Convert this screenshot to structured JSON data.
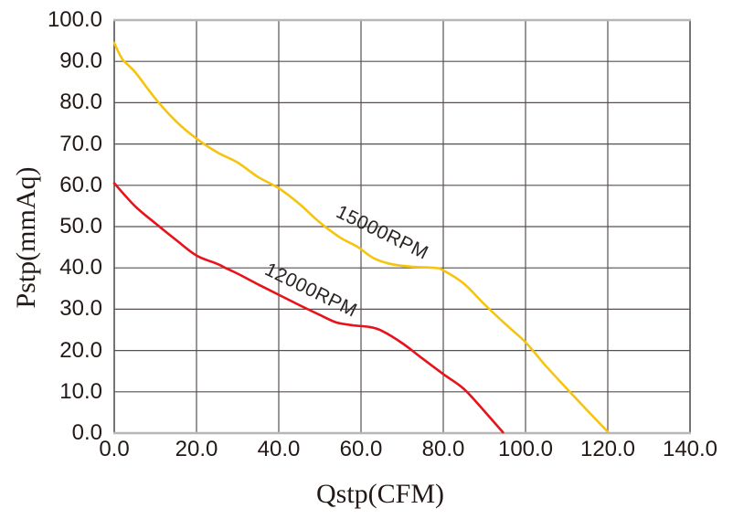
{
  "chart_data": {
    "type": "line",
    "title": "",
    "xlabel": "Qstp(CFM)",
    "ylabel": "Pstp(mmAq)",
    "xlim": [
      0,
      140
    ],
    "ylim": [
      0,
      100
    ],
    "grid": true,
    "legend_position": "inline-curve-labels",
    "x_ticks": {
      "values": [
        0,
        20,
        40,
        60,
        80,
        100,
        120,
        140
      ],
      "labels": [
        "0.0",
        "20.0",
        "40.0",
        "60.0",
        "80.0",
        "100.0",
        "120.0",
        "140.0"
      ]
    },
    "y_ticks": {
      "values": [
        0,
        10,
        20,
        30,
        40,
        50,
        60,
        70,
        80,
        90,
        100
      ],
      "labels": [
        "0.0",
        "10.0",
        "20.0",
        "30.0",
        "40.0",
        "50.0",
        "60.0",
        "70.0",
        "80.0",
        "90.0",
        "100.0"
      ]
    },
    "series": [
      {
        "name": "15000RPM",
        "color": "#f6c40e",
        "label_anchor": {
          "x": 65,
          "y": 48.5,
          "angle": 26
        },
        "points": [
          [
            0,
            94.5
          ],
          [
            2,
            90.5
          ],
          [
            5,
            87.5
          ],
          [
            10,
            81
          ],
          [
            15,
            75.5
          ],
          [
            20,
            71.3
          ],
          [
            25,
            68
          ],
          [
            30,
            65.5
          ],
          [
            35,
            62
          ],
          [
            40,
            59.3
          ],
          [
            45,
            55.5
          ],
          [
            50,
            51
          ],
          [
            55,
            47.3
          ],
          [
            59,
            45.2
          ],
          [
            63,
            42.4
          ],
          [
            67,
            41
          ],
          [
            72,
            40.3
          ],
          [
            78,
            40
          ],
          [
            80,
            39.4
          ],
          [
            85,
            36.2
          ],
          [
            90,
            31.2
          ],
          [
            95,
            26.5
          ],
          [
            100,
            22
          ],
          [
            105,
            16.2
          ],
          [
            110,
            10.8
          ],
          [
            115,
            5.5
          ],
          [
            120,
            0.3
          ]
        ]
      },
      {
        "name": "12000RPM",
        "color": "#e8111c",
        "label_anchor": {
          "x": 47.8,
          "y": 34.5,
          "angle": 26
        },
        "points": [
          [
            0,
            60.5
          ],
          [
            5,
            55
          ],
          [
            10,
            50.8
          ],
          [
            15,
            46.8
          ],
          [
            20,
            43
          ],
          [
            25,
            41
          ],
          [
            27,
            40
          ],
          [
            30,
            38.6
          ],
          [
            35,
            36
          ],
          [
            40,
            33.5
          ],
          [
            45,
            31
          ],
          [
            50,
            28.6
          ],
          [
            54,
            26.8
          ],
          [
            58,
            26.1
          ],
          [
            62,
            25.7
          ],
          [
            65,
            24.8
          ],
          [
            70,
            21.8
          ],
          [
            75,
            18
          ],
          [
            80,
            14.3
          ],
          [
            85,
            10.7
          ],
          [
            90,
            5.3
          ],
          [
            94.5,
            0.2
          ]
        ]
      }
    ]
  },
  "colors": {
    "grid_line": "#575052",
    "frame_light": "#b7b7b7",
    "text": "#231916",
    "background": "#ffffff"
  },
  "plot_geometry_note": "plot area 630x452 px at offset (125,22)"
}
